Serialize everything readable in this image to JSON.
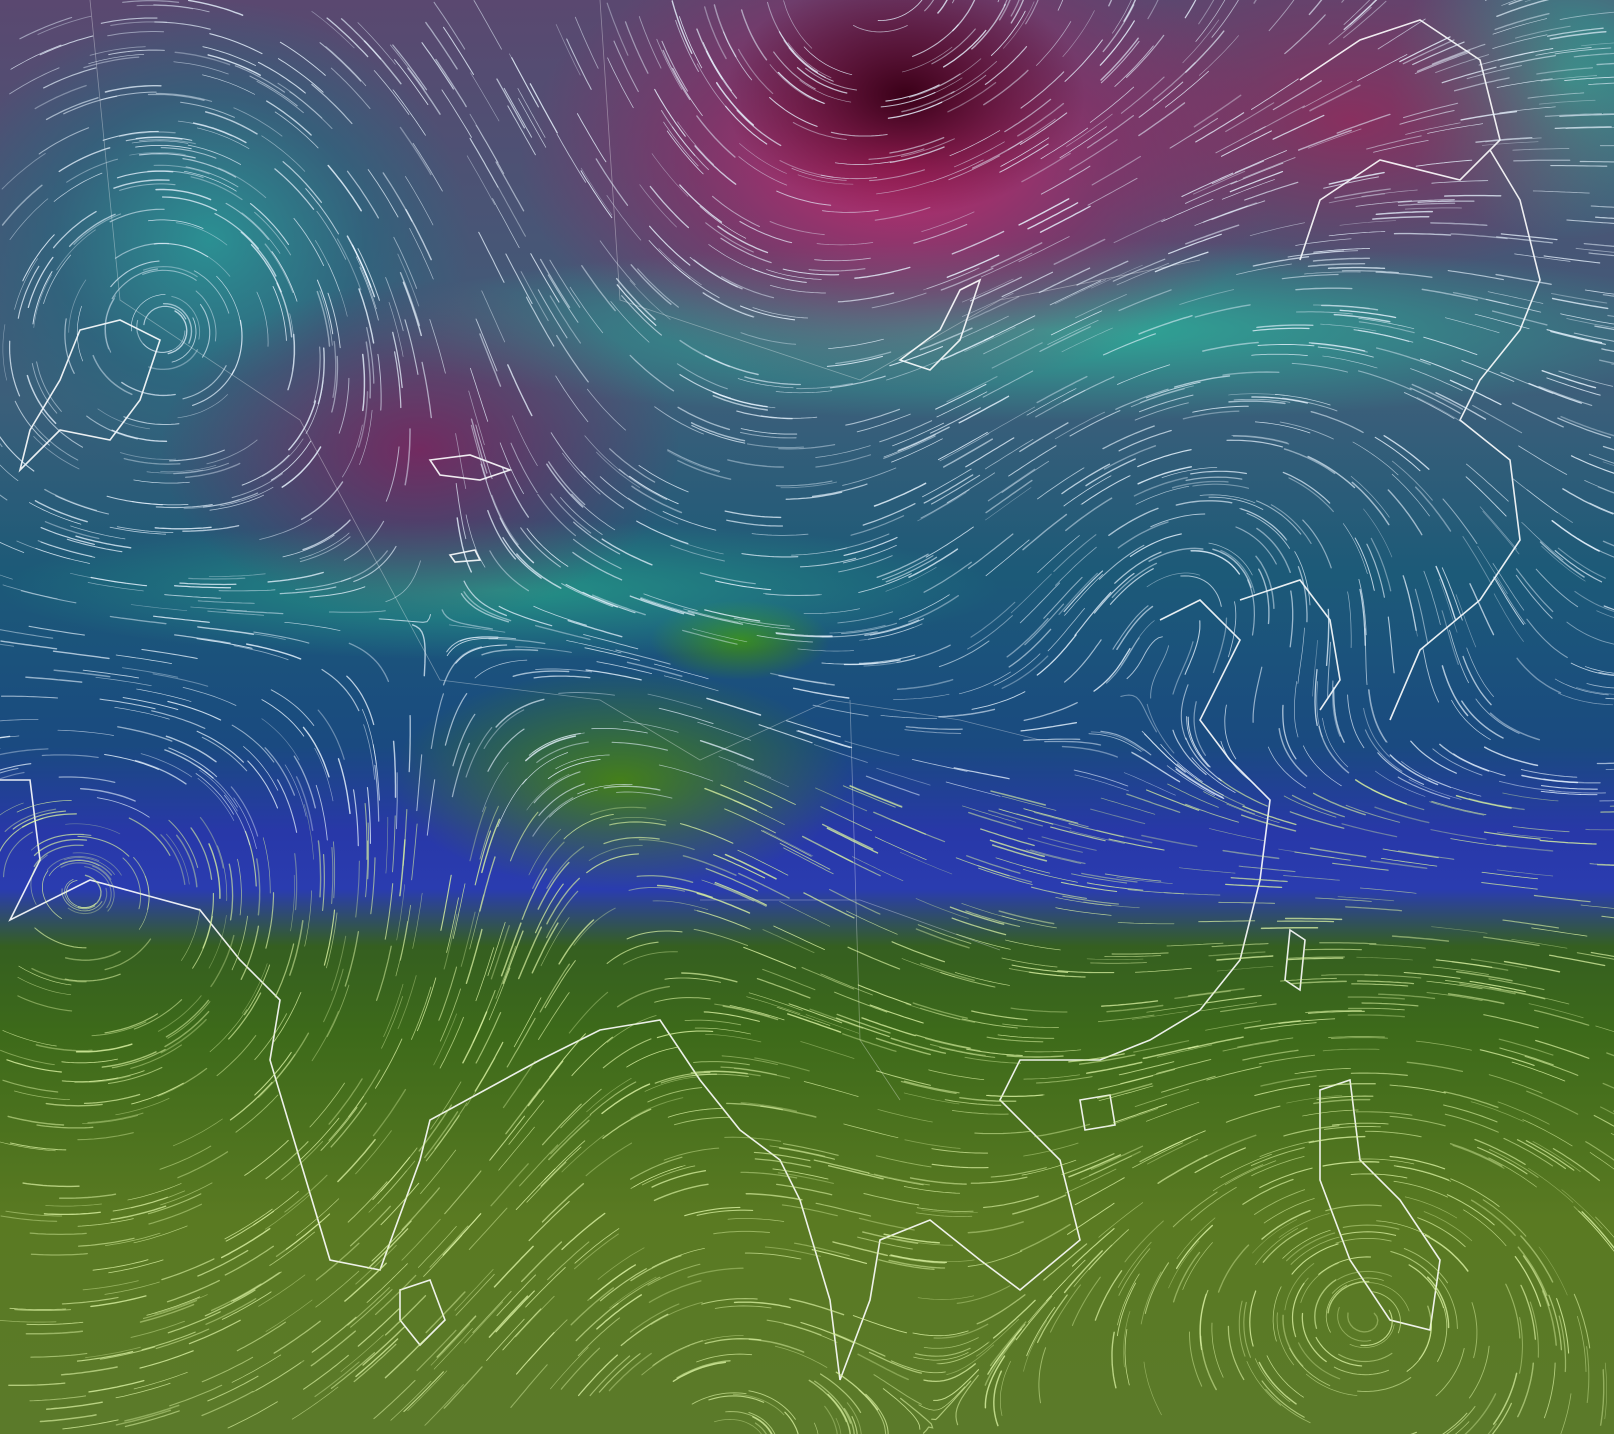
{
  "map": {
    "type": "animated wind streamlines over temperature overlay",
    "region": "Asia",
    "colors": {
      "cold_core": "#3a0018",
      "cold_magenta": "#c8286e",
      "cyan": "#28a0a0",
      "teal": "#28be a0",
      "blue": "#2a3cb0",
      "warm_green": "#3d6a1a",
      "olive": "#5b7a2a",
      "streamline": "#ffffff",
      "coastline": "#ffffff"
    }
  }
}
